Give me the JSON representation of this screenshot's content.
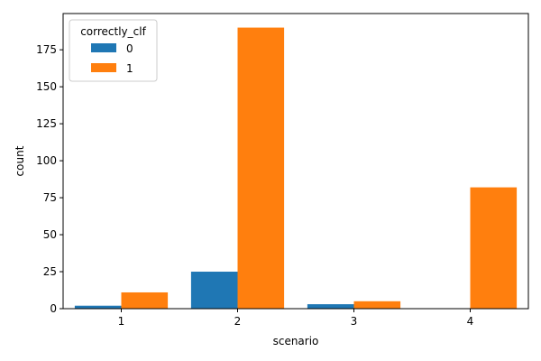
{
  "chart_data": {
    "type": "bar",
    "categories": [
      "1",
      "2",
      "3",
      "4"
    ],
    "series": [
      {
        "name": "0",
        "values": [
          2,
          25,
          3,
          0
        ]
      },
      {
        "name": "1",
        "values": [
          11,
          190,
          5,
          82
        ]
      }
    ],
    "xlabel": "scenario",
    "ylabel": "count",
    "ylim": [
      0,
      199.5
    ],
    "yticks": [
      0,
      25,
      50,
      75,
      100,
      125,
      150,
      175
    ],
    "legend": {
      "title": "correctly_clf",
      "placement": "top-left"
    },
    "colors": [
      "#1f77b4",
      "#ff7f0e"
    ],
    "grid": false
  }
}
